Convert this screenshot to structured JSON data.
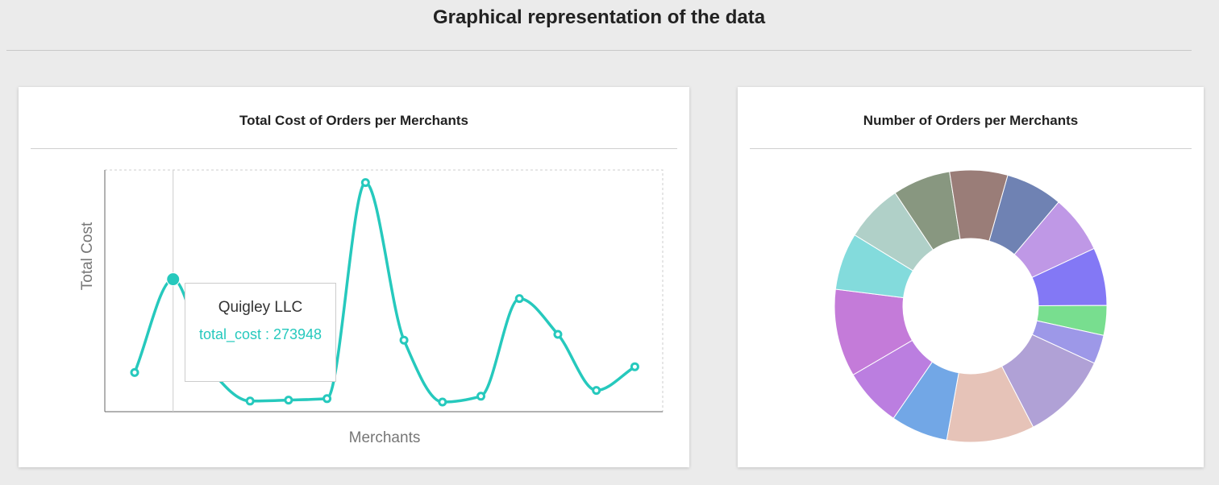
{
  "page": {
    "title": "Graphical representation of the data"
  },
  "line_card": {
    "title": "Total Cost of Orders per Merchants"
  },
  "pie_card": {
    "title": "Number of Orders per Merchants"
  },
  "tooltip": {
    "name": "Quigley LLC",
    "value_text": "total_cost : 273948"
  },
  "chart_data": [
    {
      "type": "line",
      "title": "Total Cost of Orders per Merchants",
      "xlabel": "Merchants",
      "ylabel": "Total Cost",
      "ylim": [
        0,
        500000
      ],
      "grid": false,
      "line_color": "#26c9bd",
      "series": [
        {
          "values": [
            81000,
            273948,
            84000,
            22000,
            24000,
            27000,
            474000,
            148000,
            20000,
            32000,
            234000,
            160000,
            44000,
            93000
          ]
        }
      ],
      "highlighted_index": 1
    },
    {
      "type": "pie",
      "title": "Number of Orders per Merchants",
      "donut": true,
      "slices": [
        {
          "value": 6.7,
          "color": "#6f82b3"
        },
        {
          "value": 6.8,
          "color": "#bf98e6"
        },
        {
          "value": 6.8,
          "color": "#8378f5"
        },
        {
          "value": 3.5,
          "color": "#78de8f"
        },
        {
          "value": 3.4,
          "color": "#9d98e8"
        },
        {
          "value": 10.4,
          "color": "#b0a1d6"
        },
        {
          "value": 10.3,
          "color": "#e6c3b8"
        },
        {
          "value": 6.7,
          "color": "#72a7e6"
        },
        {
          "value": 6.9,
          "color": "#bb7ee0"
        },
        {
          "value": 10.3,
          "color": "#c47bd9"
        },
        {
          "value": 6.7,
          "color": "#83dbdc"
        },
        {
          "value": 6.8,
          "color": "#b0d0c8"
        },
        {
          "value": 6.8,
          "color": "#889780"
        },
        {
          "value": 6.8,
          "color": "#9a7d78"
        }
      ]
    }
  ]
}
